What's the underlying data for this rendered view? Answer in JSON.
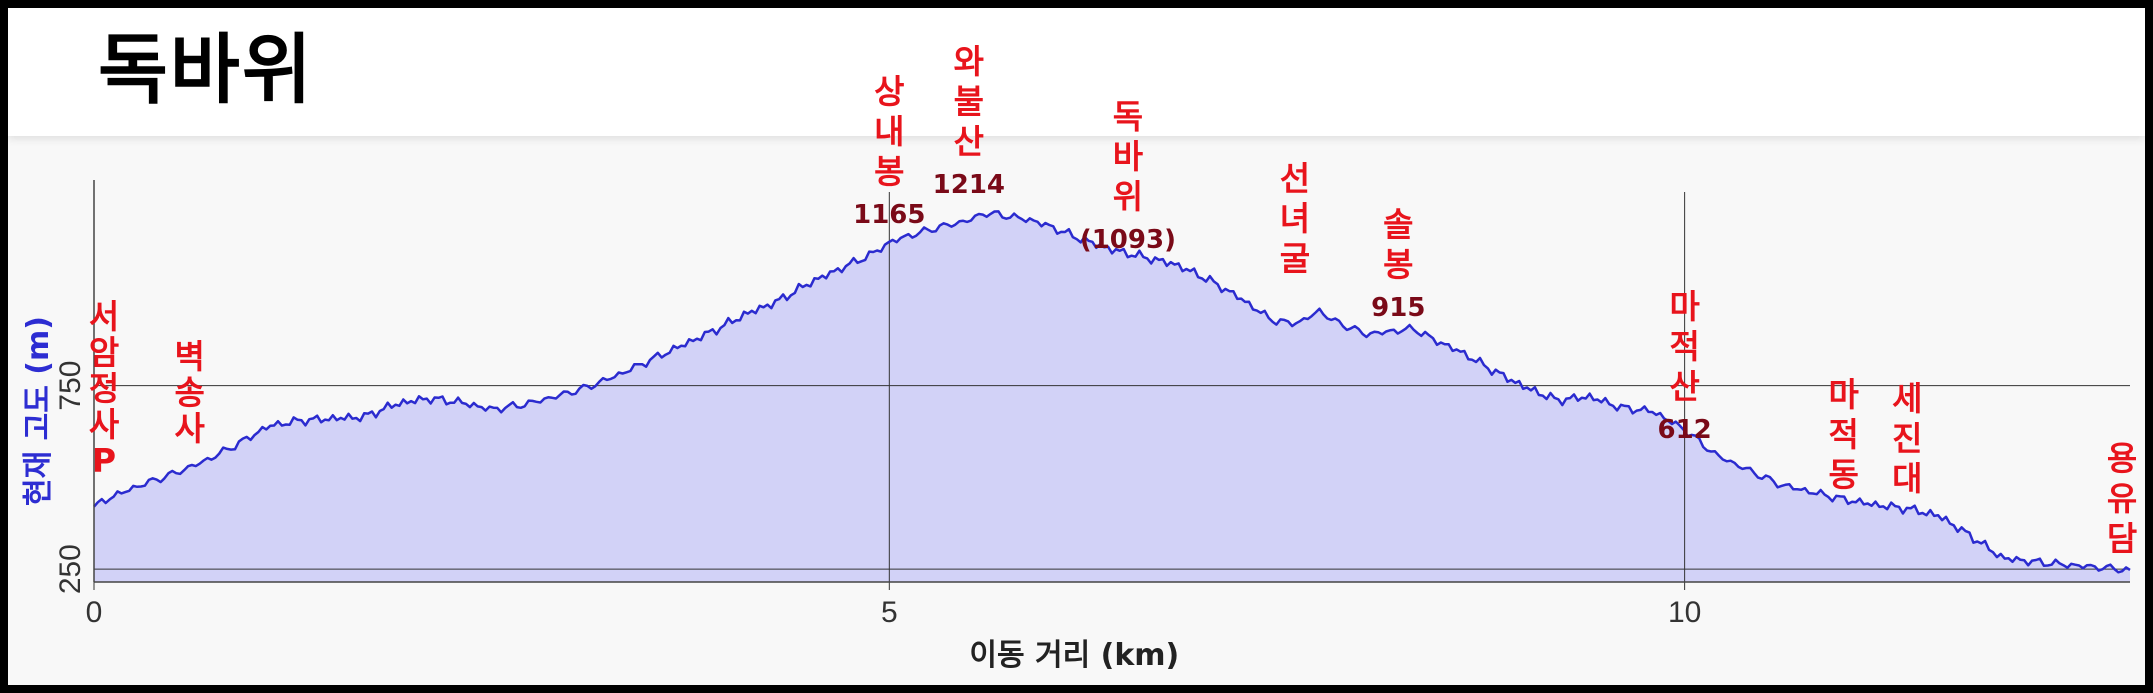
{
  "title": "독바위",
  "colors": {
    "line": "#2b2bcf",
    "fill": "#d2d2f7",
    "waypoint_name": "#e8141c",
    "waypoint_elev": "#7a0a18",
    "ylabel": "#2d2dd2"
  },
  "chart_data": {
    "type": "area",
    "xlabel": "이동 거리 (km)",
    "ylabel": "현재 고도 (m)",
    "xlim": [
      0,
      12.8
    ],
    "ylim": [
      215,
      1310
    ],
    "xticks": [
      "0",
      "5",
      "10"
    ],
    "yticks": [
      "250",
      "750"
    ],
    "grid": true,
    "series": [
      {
        "x": [
          0,
          0.1,
          0.3,
          0.5,
          0.7,
          0.9,
          1.1,
          1.3,
          1.5,
          1.7,
          1.9,
          2.1,
          2.3,
          2.5,
          2.7,
          2.9,
          3.1,
          3.3,
          3.5,
          3.7,
          3.9,
          4.1,
          4.3,
          4.5,
          4.7,
          4.9,
          5.0,
          5.1,
          5.3,
          5.5,
          5.6,
          5.7,
          5.9,
          6.0,
          6.2,
          6.4,
          6.6,
          6.8,
          7.0,
          7.2,
          7.4,
          7.5,
          7.6,
          7.7,
          7.8,
          8.0,
          8.2,
          8.3,
          8.4,
          8.6,
          8.8,
          9.0,
          9.2,
          9.4,
          9.6,
          9.8,
          10.0,
          10.2,
          10.4,
          10.6,
          10.8,
          11.0,
          11.2,
          11.4,
          11.6,
          11.8,
          12.0,
          12.2,
          12.4,
          12.6,
          12.8
        ],
        "y": [
          420,
          445,
          480,
          510,
          545,
          590,
          640,
          655,
          660,
          665,
          700,
          715,
          705,
          685,
          698,
          720,
          745,
          780,
          820,
          860,
          900,
          945,
          980,
          1030,
          1070,
          1110,
          1140,
          1155,
          1180,
          1200,
          1220,
          1215,
          1200,
          1185,
          1150,
          1120,
          1100,
          1080,
          1040,
          990,
          930,
          920,
          925,
          955,
          925,
          890,
          900,
          905,
          880,
          840,
          790,
          745,
          710,
          720,
          690,
          680,
          630,
          560,
          520,
          480,
          460,
          440,
          425,
          415,
          395,
          340,
          280,
          270,
          262,
          255,
          248
        ],
        "waypoints": [
          {
            "name": "서암정사P",
            "x": 0.0,
            "elev": ""
          },
          {
            "name": "벽송사",
            "x": 0.3,
            "elev": ""
          },
          {
            "name": "상내봉",
            "x": 5.0,
            "elev": "1165"
          },
          {
            "name": "와불산",
            "x": 5.5,
            "elev": "1214"
          },
          {
            "name": "독바위",
            "x": 6.5,
            "elev": "(1093)"
          },
          {
            "name": "선녀굴",
            "x": 7.55,
            "elev": ""
          },
          {
            "name": "솔봉",
            "x": 8.2,
            "elev": "915"
          },
          {
            "name": "마적산",
            "x": 10.0,
            "elev": "612"
          },
          {
            "name": "마적동",
            "x": 11.0,
            "elev": ""
          },
          {
            "name": "세진대",
            "x": 11.4,
            "elev": ""
          },
          {
            "name": "용유담",
            "x": 12.75,
            "elev": ""
          }
        ]
      }
    ]
  }
}
